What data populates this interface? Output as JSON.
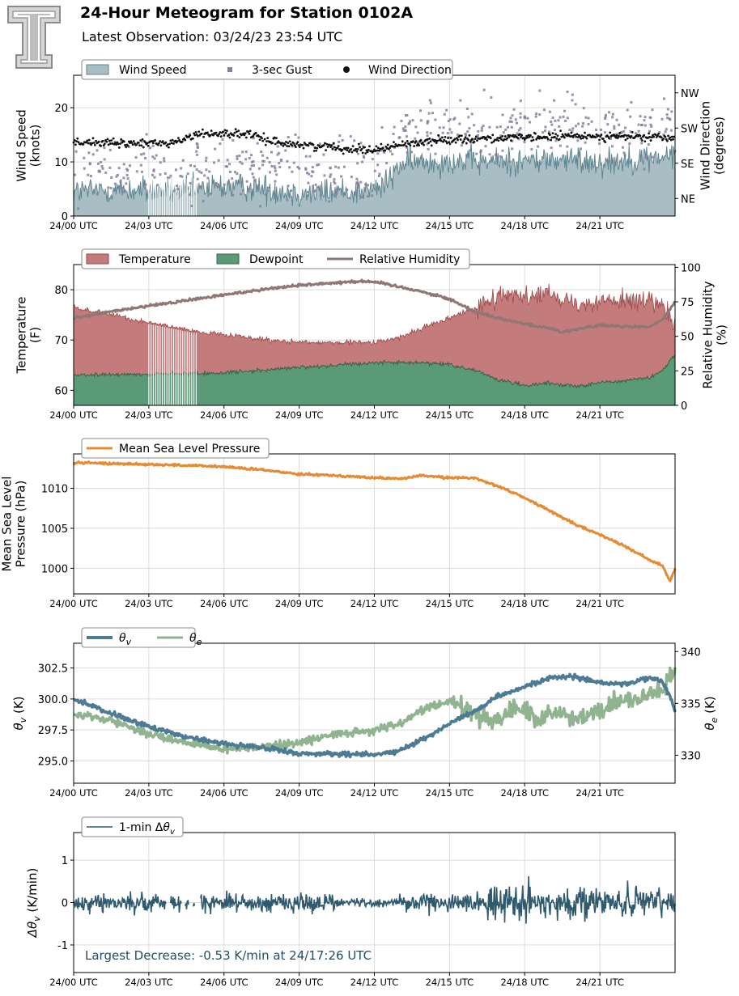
{
  "header": {
    "title": "24-Hour Meteogram for Station 0102A",
    "subtitle": "Latest Observation: 03/24/23 23:54 UTC"
  },
  "colors": {
    "wind_speed": "#a8bec4",
    "wind_speed_line": "#5f8590",
    "gust": "#8a7e9e",
    "wind_direction": "#111111",
    "temperature": "#c47b7b",
    "temperature_edge": "#9b4a4a",
    "dewpoint": "#5a9a76",
    "dewpoint_edge": "#3d5f4a",
    "relative_humidity": "#8f7775",
    "mslp": "#e58b35",
    "theta_v": "#4d7b94",
    "theta_e": "#8fb48f",
    "delta_theta_v": "#2f5a6e",
    "annotation": "#1f4d66"
  },
  "x_axis": {
    "tick_hours": [
      0,
      3,
      6,
      9,
      12,
      15,
      18,
      21
    ],
    "tick_labels": [
      "24/00 UTC",
      "24/03 UTC",
      "24/06 UTC",
      "24/09 UTC",
      "24/12 UTC",
      "24/15 UTC",
      "24/18 UTC",
      "24/21 UTC"
    ],
    "range_hours": [
      0,
      24
    ]
  },
  "chart_data": [
    {
      "type": "bar",
      "ylabel": "Wind Speed\n(knots)",
      "ylabel2": "Wind Direction\n(degrees)",
      "ylim": [
        0,
        26
      ],
      "yticks": [
        0,
        10,
        20
      ],
      "y2_ticks": [
        "NE",
        "SE",
        "SW",
        "NW"
      ],
      "y2_tick_degrees": [
        45,
        135,
        225,
        315
      ],
      "y2lim": [
        0,
        360
      ],
      "legend": [
        "Wind Speed",
        "3-sec Gust",
        "Wind Direction"
      ],
      "legend_position": "top-left",
      "grid": true,
      "series": [
        {
          "name": "Wind Speed",
          "x_hours": [
            0,
            1.5,
            3,
            4.5,
            6,
            7.5,
            9,
            10.5,
            12,
            12.5,
            13,
            14,
            15,
            16.5,
            18,
            19.5,
            21,
            22.5,
            24
          ],
          "values": [
            4.5,
            4.8,
            4.7,
            4.5,
            5.5,
            5.2,
            4.2,
            4.5,
            4.8,
            6,
            9.5,
            10,
            10.2,
            10,
            10.2,
            10.4,
            10,
            10.5,
            11
          ]
        },
        {
          "name": "3-sec Gust",
          "x_hours": [
            0,
            1.5,
            3,
            4.5,
            6,
            7.5,
            9,
            10.5,
            12,
            12.5,
            13,
            14,
            15,
            16.5,
            18,
            19.5,
            21,
            22.5,
            24
          ],
          "values": [
            8.5,
            8.8,
            8.5,
            9,
            9.5,
            9.2,
            8,
            8.5,
            9,
            11,
            14.5,
            15.5,
            16,
            16.2,
            16.5,
            17,
            16.5,
            17,
            17.5
          ]
        },
        {
          "name": "Wind Direction",
          "x_hours": [
            0,
            2,
            4,
            5,
            6,
            7,
            8,
            9,
            10,
            11,
            12,
            13,
            14,
            15,
            16,
            18,
            20,
            22,
            24
          ],
          "values": [
            190,
            185,
            188,
            210,
            212,
            208,
            190,
            182,
            178,
            172,
            170,
            182,
            190,
            196,
            198,
            200,
            205,
            203,
            200
          ]
        }
      ]
    },
    {
      "type": "area",
      "ylabel": "Temperature\n(F)",
      "ylabel2": "Relative Humidity\n(%)",
      "ylim": [
        57,
        85
      ],
      "yticks": [
        60,
        70,
        80
      ],
      "y2lim": [
        0,
        102
      ],
      "y2ticks": [
        0,
        25,
        50,
        75,
        100
      ],
      "legend": [
        "Temperature",
        "Dewpoint",
        "Relative Humidity"
      ],
      "legend_position": "top-left",
      "grid": true,
      "series": [
        {
          "name": "Temperature",
          "x_hours": [
            0,
            1.5,
            3,
            4.5,
            6,
            7.5,
            9,
            10.5,
            12,
            13,
            14,
            15,
            15.8,
            16.5,
            17,
            18,
            19,
            20,
            21,
            22,
            23,
            23.5,
            24
          ],
          "values": [
            76.5,
            75,
            73.5,
            72,
            71,
            70.2,
            69.5,
            69.5,
            69.5,
            70.5,
            72.5,
            74.5,
            76,
            77.5,
            78.5,
            78.8,
            79.2,
            77.5,
            77.8,
            78,
            77.5,
            76.5,
            73
          ]
        },
        {
          "name": "Dewpoint",
          "x_hours": [
            0,
            3,
            6,
            9,
            12,
            14,
            15,
            16,
            17,
            18,
            19,
            20,
            21,
            22,
            23,
            23.5,
            24
          ],
          "values": [
            63,
            63.2,
            63.5,
            64.5,
            65.5,
            65.5,
            65.2,
            64,
            62,
            61,
            61.5,
            60.8,
            61.5,
            62,
            62.5,
            64,
            67
          ]
        },
        {
          "name": "Relative Humidity",
          "x_hours": [
            0,
            1.5,
            3,
            4.5,
            6,
            7.5,
            9,
            10.5,
            11.5,
            12,
            13,
            14,
            15,
            16,
            17,
            18,
            19,
            19.5,
            20,
            21,
            22,
            23,
            23.5,
            24
          ],
          "values": [
            63,
            68,
            72,
            76,
            80,
            84,
            87,
            89,
            90,
            89.5,
            86,
            82,
            77,
            68,
            63,
            59,
            56,
            53,
            55,
            58,
            57,
            57,
            62,
            75
          ]
        }
      ]
    },
    {
      "type": "line",
      "ylabel": "Mean Sea Level\nPressure (hPa)",
      "ylim": [
        996.8,
        1014.3
      ],
      "yticks": [
        1000,
        1005,
        1010
      ],
      "legend": [
        "Mean Sea Level Pressure"
      ],
      "legend_position": "top-left",
      "grid": true,
      "series": [
        {
          "name": "Mean Sea Level Pressure",
          "x_hours": [
            0,
            3,
            6,
            7.5,
            9,
            10.5,
            12,
            13,
            14,
            15,
            16,
            17,
            18,
            19,
            20,
            21,
            22,
            23,
            23.5,
            23.8,
            24
          ],
          "values": [
            1013.2,
            1013,
            1012.7,
            1012.3,
            1011.8,
            1011.6,
            1011.3,
            1011.2,
            1011.6,
            1011.3,
            1011.3,
            1010.2,
            1008.8,
            1007.2,
            1005.5,
            1004.2,
            1002.8,
            1001,
            1000.3,
            998.4,
            1000
          ]
        }
      ]
    },
    {
      "type": "line",
      "ylabel": "θv (K)",
      "ylabel2": "θe (K)",
      "ylim": [
        293.2,
        304.5
      ],
      "yticks": [
        295.0,
        297.5,
        300.0,
        302.5
      ],
      "y2lim": [
        327.3,
        340.8
      ],
      "y2ticks": [
        330,
        335,
        340
      ],
      "legend": [
        "θv",
        "θe"
      ],
      "legend_position": "top-left",
      "grid": true,
      "series": [
        {
          "name": "θv",
          "x_hours": [
            0,
            1.5,
            3,
            4.5,
            6,
            7.5,
            9,
            10.5,
            12,
            13,
            14,
            15,
            16,
            17,
            18,
            19,
            20,
            21,
            22,
            23,
            23.5,
            24
          ],
          "values": [
            300,
            298.8,
            297.8,
            296.9,
            296.4,
            296.1,
            295.6,
            295.6,
            295.5,
            295.8,
            296.8,
            298,
            299,
            300.3,
            301,
            301.7,
            301.8,
            301.3,
            301.2,
            301.7,
            301.4,
            299.2
          ]
        },
        {
          "name": "θe",
          "x_hours": [
            0,
            1.5,
            3,
            4.5,
            6,
            7.5,
            9,
            10.5,
            12,
            13,
            14,
            15,
            15.5,
            16.5,
            17,
            18,
            18.5,
            19,
            20,
            21,
            22,
            23,
            23.5,
            24
          ],
          "values": [
            334,
            333.3,
            332,
            331.3,
            330.6,
            330.8,
            331.2,
            332,
            332.4,
            333,
            334.5,
            335.2,
            334.6,
            333.4,
            333.8,
            334.6,
            333.2,
            334.4,
            333.4,
            334.4,
            335.2,
            336,
            336.5,
            338
          ]
        }
      ]
    },
    {
      "type": "line",
      "ylabel": "Δθv (K/min)",
      "ylim": [
        -1.65,
        1.65
      ],
      "yticks": [
        -1,
        0,
        1
      ],
      "legend": [
        "1-min Δθv"
      ],
      "legend_position": "top-left",
      "grid": true,
      "annotation": "Largest Decrease: -0.53 K/min at 24/17:26 UTC",
      "series": [
        {
          "name": "1-min Δθv",
          "x_hours": [
            0,
            24
          ],
          "values": [
            0,
            0
          ]
        }
      ]
    }
  ]
}
